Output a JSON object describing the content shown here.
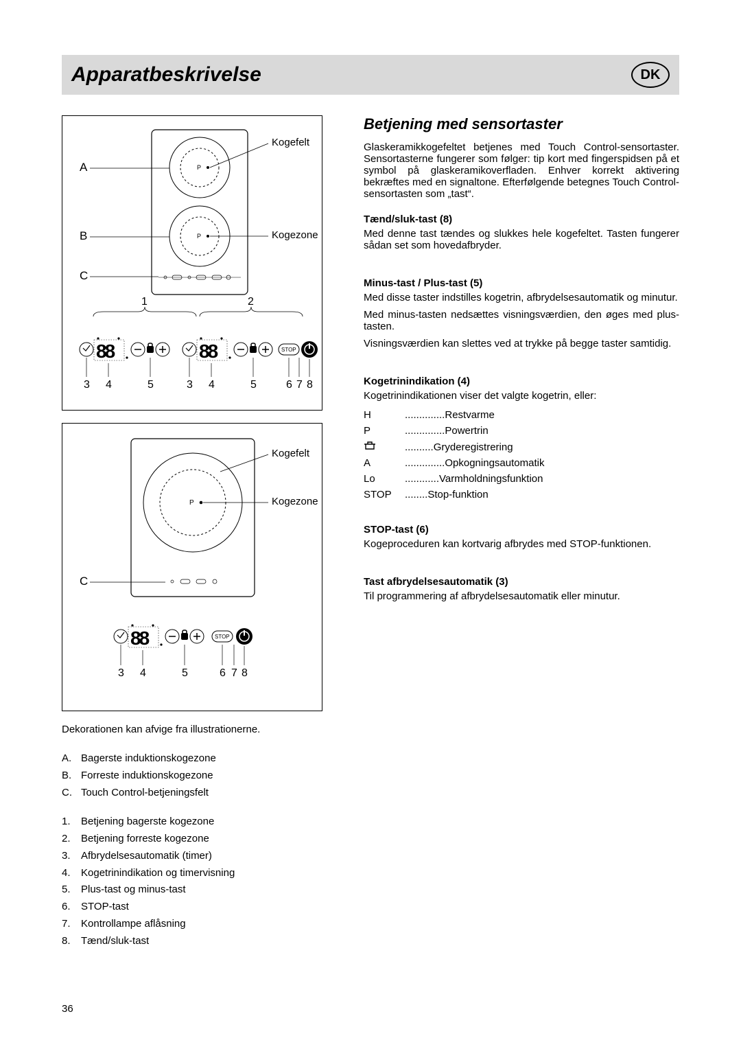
{
  "title": "Apparatbeskrivelse",
  "country_badge": "DK",
  "right": {
    "heading": "Betjening med sensortaster",
    "intro": "Glaskeramikkogefeltet betjenes med Touch Control-sensortaster. Sensortasterne fungerer som følger: tip kort med fingerspidsen på et symbol på glaskeramikoverfladen. Enhver korrekt aktivering bekræftes med en signaltone. Efterfølgende betegnes Touch Control-sensortasten som „tast“.",
    "sections": [
      {
        "title": "Tænd/sluk-tast (8)",
        "paras": [
          "Med denne tast tændes og slukkes hele kogefeltet. Tasten fungerer sådan set som hovedafbryder."
        ]
      },
      {
        "title": "Minus-tast / Plus-tast  (5)",
        "paras": [
          "Med disse taster indstilles kogetrin, afbrydelsesautomatik og minutur.",
          "Med minus-tasten nedsættes visningsværdien, den øges med plus-tasten.",
          "Visningsværdien kan slettes ved at trykke på begge taster samtidig."
        ]
      },
      {
        "title": "Kogetrinindikation (4)",
        "intro": "Kogetrinindikationen viser det valgte kogetrin, eller:",
        "indicators": [
          {
            "key": "H",
            "label": "Restvarme"
          },
          {
            "key": "P",
            "label": "Powertrin"
          },
          {
            "key": "pot",
            "label": "Gryderegistrering"
          },
          {
            "key": "A",
            "label": "Opkogningsautomatik"
          },
          {
            "key": "Lo",
            "label": "Varmholdningsfunktion"
          },
          {
            "key": "STOP",
            "label": "Stop-funktion"
          }
        ]
      },
      {
        "title": "STOP-tast (6)",
        "paras": [
          "Kogeproceduren kan kortvarig afbrydes med STOP-funktionen."
        ]
      },
      {
        "title": "Tast afbrydelsesautomatik (3)",
        "paras": [
          "Til programmering af afbrydelsesautomatik eller minutur."
        ]
      }
    ]
  },
  "left": {
    "diagram1": {
      "labels": {
        "A": "A",
        "B": "B",
        "C": "C",
        "kogefelt": "Kogefelt",
        "kogezone": "Kogezone",
        "P": "P"
      },
      "top_nums": [
        "1",
        "2"
      ],
      "bottom_nums": [
        "3",
        "4",
        "5",
        "3",
        "4",
        "5",
        "6",
        "7",
        "8"
      ]
    },
    "diagram2": {
      "labels": {
        "C": "C",
        "kogefelt": "Kogefelt",
        "kogezone": "Kogezone",
        "P": "P"
      },
      "bottom_nums": [
        "3",
        "4",
        "5",
        "6",
        "7",
        "8"
      ]
    },
    "caption": "Dekorationen kan afvige fra illustrationerne.",
    "letter_list": [
      {
        "key": "A.",
        "label": "Bagerste induktionskogezone"
      },
      {
        "key": "B.",
        "label": "Forreste induktionskogezone"
      },
      {
        "key": "C.",
        "label": "Touch Control-betjeningsfelt"
      }
    ],
    "number_list": [
      {
        "key": "1.",
        "label": "Betjening bagerste kogezone"
      },
      {
        "key": "2.",
        "label": "Betjening forreste kogezone"
      },
      {
        "key": "3.",
        "label": "Afbrydelsesautomatik (timer)"
      },
      {
        "key": "4.",
        "label": "Kogetrinindikation og timervisning"
      },
      {
        "key": "5.",
        "label": "Plus-tast og minus-tast"
      },
      {
        "key": "6.",
        "label": "STOP-tast"
      },
      {
        "key": "7.",
        "label": "Kontrollampe aflåsning"
      },
      {
        "key": "8.",
        "label": "Tænd/sluk-tast"
      }
    ]
  },
  "page_number": "36"
}
